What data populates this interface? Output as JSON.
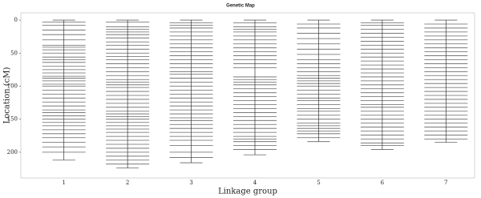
{
  "chart_data": {
    "type": "genetic_map",
    "title": "Genetic Map",
    "x_label": "Linkage group",
    "y_label": "Location (cM)",
    "categories": [
      "1",
      "2",
      "3",
      "4",
      "5",
      "6",
      "7"
    ],
    "values": [
      [
        0,
        3,
        8,
        15,
        22,
        30,
        38,
        41,
        45,
        50,
        56,
        60,
        64,
        70,
        75,
        80,
        85,
        88,
        92,
        97,
        100,
        106,
        112,
        118,
        124,
        130,
        136,
        140,
        145,
        150,
        155,
        160,
        166,
        172,
        178,
        185,
        192,
        200,
        212
      ],
      [
        0,
        3,
        10,
        14,
        18,
        22,
        27,
        33,
        38,
        44,
        50,
        55,
        60,
        66,
        72,
        78,
        84,
        90,
        94,
        98,
        102,
        108,
        114,
        120,
        126,
        132,
        138,
        142,
        146,
        150,
        155,
        160,
        165,
        170,
        176,
        182,
        188,
        194,
        200,
        206,
        212,
        218,
        224
      ],
      [
        0,
        4,
        8,
        12,
        18,
        24,
        30,
        36,
        42,
        48,
        54,
        60,
        66,
        72,
        78,
        82,
        88,
        94,
        100,
        106,
        112,
        118,
        124,
        130,
        136,
        142,
        148,
        152,
        158,
        164,
        170,
        176,
        182,
        190,
        200,
        208,
        216
      ],
      [
        0,
        4,
        10,
        14,
        18,
        24,
        30,
        36,
        42,
        48,
        54,
        60,
        66,
        72,
        86,
        90,
        94,
        98,
        104,
        110,
        116,
        122,
        128,
        134,
        140,
        146,
        152,
        158,
        164,
        170,
        176,
        180,
        184,
        190,
        196,
        204
      ],
      [
        0,
        6,
        12,
        20,
        28,
        36,
        44,
        52,
        60,
        66,
        72,
        78,
        84,
        88,
        92,
        96,
        100,
        106,
        112,
        118,
        122,
        128,
        134,
        138,
        144,
        150,
        156,
        160,
        164,
        168,
        172,
        178,
        184
      ],
      [
        0,
        4,
        8,
        14,
        20,
        26,
        32,
        38,
        44,
        50,
        56,
        62,
        68,
        74,
        80,
        86,
        92,
        98,
        104,
        110,
        116,
        122,
        128,
        132,
        138,
        144,
        150,
        156,
        162,
        168,
        174,
        180,
        186,
        190,
        196
      ],
      [
        0,
        6,
        12,
        18,
        24,
        30,
        36,
        42,
        48,
        54,
        60,
        66,
        72,
        78,
        84,
        90,
        96,
        102,
        108,
        114,
        120,
        126,
        132,
        138,
        144,
        150,
        156,
        162,
        168,
        174,
        180,
        185
      ]
    ],
    "color": "#333333",
    "ylim": [
      -11,
      239
    ],
    "y_inverted": true,
    "yticks": [
      0,
      50,
      100,
      150,
      200
    ]
  }
}
